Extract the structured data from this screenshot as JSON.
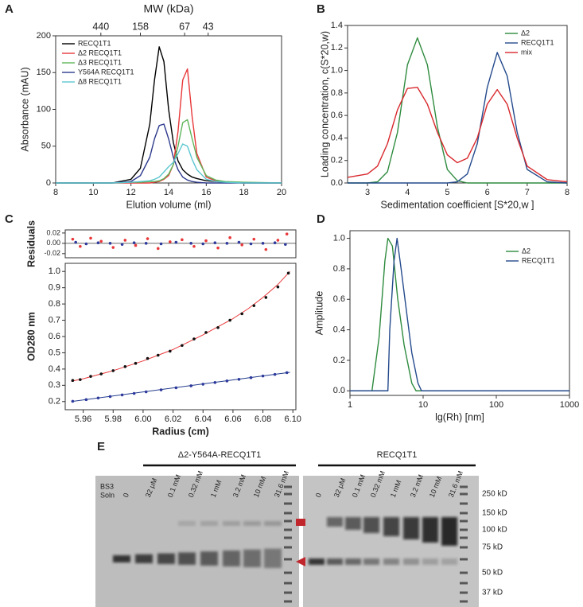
{
  "chart_data": [
    {
      "type": "line",
      "panel": "A",
      "x2label": "MW (kDa)",
      "xlabel": "Elution volume (ml)",
      "ylabel": "Absorbance (mAU)",
      "x": [
        8,
        10,
        11,
        12,
        12.5,
        13,
        13.25,
        13.5,
        13.75,
        14,
        14.25,
        14.5,
        14.75,
        15,
        15.25,
        15.5,
        16,
        16.5,
        17,
        18,
        20
      ],
      "series": [
        {
          "name": "RECQ1T1",
          "color": "#000000",
          "values": [
            0,
            0,
            0,
            5,
            20,
            80,
            140,
            185,
            165,
            100,
            55,
            30,
            18,
            12,
            8,
            6,
            3,
            2,
            1,
            0,
            0
          ]
        },
        {
          "name": "Δ2 RECQ1T1",
          "color": "#e8383a",
          "values": [
            0,
            0,
            0,
            0,
            0,
            0,
            1,
            2,
            5,
            10,
            25,
            70,
            140,
            155,
            90,
            40,
            8,
            3,
            1,
            0,
            0
          ]
        },
        {
          "name": "Δ3 RECQ1T1",
          "color": "#5fb55a",
          "values": [
            0,
            0,
            0,
            1,
            1,
            2,
            2,
            3,
            6,
            12,
            25,
            50,
            82,
            86,
            60,
            35,
            10,
            4,
            2,
            1,
            0
          ]
        },
        {
          "name": "Y564A RECQ1T1",
          "color": "#2d3a8c",
          "values": [
            0,
            0,
            0,
            2,
            10,
            35,
            60,
            78,
            80,
            60,
            35,
            18,
            8,
            4,
            2,
            1,
            0,
            0,
            0,
            0,
            0
          ]
        },
        {
          "name": "Δ8 RECQ1T1",
          "color": "#5cc6d0",
          "values": [
            0,
            0,
            0,
            1,
            2,
            3,
            5,
            8,
            15,
            22,
            28,
            40,
            53,
            50,
            32,
            18,
            5,
            2,
            1,
            0,
            0
          ]
        }
      ],
      "xlim": [
        8,
        20
      ],
      "ylim": [
        0,
        200
      ],
      "xticks": [
        8,
        10,
        12,
        14,
        16,
        18,
        20
      ],
      "yticks": [
        0,
        50,
        100,
        150,
        200
      ],
      "x2ticks": [
        {
          "value": 10.4,
          "label": "440"
        },
        {
          "value": 12.5,
          "label": "158"
        },
        {
          "value": 14.85,
          "label": "67"
        },
        {
          "value": 16.1,
          "label": "43"
        }
      ],
      "legend": "upper left"
    },
    {
      "type": "line",
      "panel": "B",
      "xlabel": "Sedimentation coefficient [S*20,w ]",
      "ylabel": "Loading concentration, c(S*20,w)",
      "x": [
        2.5,
        3,
        3.25,
        3.5,
        3.75,
        4,
        4.25,
        4.5,
        4.75,
        5,
        5.25,
        5.5,
        5.75,
        6,
        6.25,
        6.5,
        6.75,
        7,
        7.5,
        8
      ],
      "series": [
        {
          "name": "Δ2",
          "color": "#2e8b3e",
          "values": [
            0,
            0,
            0.01,
            0.1,
            0.45,
            1.05,
            1.29,
            1.05,
            0.5,
            0.12,
            0.02,
            0,
            0,
            0,
            0,
            0,
            0,
            0,
            0,
            0
          ]
        },
        {
          "name": "RECQ1T1",
          "color": "#244a8c",
          "values": [
            0,
            0,
            0,
            0,
            0,
            0,
            0,
            0,
            0,
            0,
            0.01,
            0.08,
            0.35,
            0.85,
            1.16,
            0.95,
            0.45,
            0.12,
            0.01,
            0
          ]
        },
        {
          "name": "mix",
          "color": "#d8282c",
          "values": [
            0.05,
            0.08,
            0.15,
            0.35,
            0.65,
            0.84,
            0.85,
            0.7,
            0.45,
            0.25,
            0.18,
            0.22,
            0.4,
            0.7,
            0.83,
            0.7,
            0.4,
            0.15,
            0.03,
            0.01
          ]
        }
      ],
      "xlim": [
        2.5,
        8
      ],
      "ylim": [
        0,
        1.4
      ],
      "xticks": [
        3,
        4,
        5,
        6,
        7,
        8
      ],
      "yticks": [
        {
          "value": 0,
          "label": "0.0"
        },
        0.2,
        0.4,
        0.6,
        0.8,
        {
          "value": 1,
          "label": "1.0"
        },
        1.2,
        1.4
      ],
      "legend": "upper right"
    },
    {
      "type": "scatter",
      "panel": "C",
      "ylabel": "Residuals",
      "series": [
        {
          "color": "#e8383a",
          "x": [
            5.953,
            5.958,
            5.965,
            5.972,
            5.98,
            5.988,
            5.995,
            6.003,
            6.01,
            6.018,
            6.026,
            6.034,
            6.042,
            6.05,
            6.058,
            6.066,
            6.074,
            6.082,
            6.09,
            6.096
          ],
          "values": [
            0.008,
            -0.006,
            0.01,
            0.004,
            -0.008,
            0.006,
            -0.004,
            0.009,
            -0.01,
            0.003,
            0.007,
            -0.006,
            0.005,
            -0.009,
            0.011,
            -0.003,
            0.008,
            -0.012,
            0.006,
            0.018
          ]
        },
        {
          "color": "#2d3a9c",
          "x": [
            5.955,
            5.962,
            5.97,
            5.978,
            5.986,
            5.994,
            6.002,
            6.012,
            6.022,
            6.032,
            6.04,
            6.048,
            6.056,
            6.064,
            6.072,
            6.08,
            6.088,
            6.095
          ],
          "values": [
            0.002,
            -0.001,
            0.001,
            0,
            -0.002,
            0.001,
            0,
            -0.001,
            0.002,
            0,
            -0.001,
            0.001,
            0,
            0.002,
            -0.001,
            0,
            0.001,
            -0.002
          ]
        }
      ],
      "xlim": [
        5.948,
        6.102
      ],
      "ylim": [
        -0.028,
        0.026
      ],
      "yticks": [
        -0.02,
        {
          "value": 0,
          "label": "0.00"
        },
        0.02
      ]
    },
    {
      "type": "scatter",
      "panel": "C",
      "ylabel": "OD280 nm",
      "xlabel": "Radius (cm)",
      "series": [
        {
          "type": "line",
          "color": "#e8383a",
          "x": [
            5.952,
            5.96,
            5.97,
            5.98,
            5.99,
            6,
            6.01,
            6.02,
            6.03,
            6.04,
            6.05,
            6.06,
            6.07,
            6.08,
            6.09,
            6.098
          ],
          "values": [
            0.325,
            0.34,
            0.365,
            0.39,
            0.42,
            0.45,
            0.485,
            0.52,
            0.565,
            0.61,
            0.66,
            0.71,
            0.77,
            0.84,
            0.92,
            1.0
          ]
        },
        {
          "color": "#111111",
          "x": [
            5.953,
            5.958,
            5.965,
            5.972,
            5.98,
            5.988,
            5.995,
            6.003,
            6.01,
            6.018,
            6.026,
            6.034,
            6.042,
            6.05,
            6.058,
            6.066,
            6.074,
            6.082,
            6.09,
            6.097
          ],
          "values": [
            0.33,
            0.335,
            0.355,
            0.37,
            0.39,
            0.415,
            0.435,
            0.465,
            0.485,
            0.51,
            0.545,
            0.585,
            0.625,
            0.655,
            0.7,
            0.74,
            0.79,
            0.84,
            0.905,
            0.99
          ]
        },
        {
          "type": "line",
          "color": "#223a8c",
          "x": [
            5.952,
            6.098
          ],
          "values": [
            0.2,
            0.38
          ]
        },
        {
          "color": "#2d3a9c",
          "x": [
            5.953,
            5.962,
            5.97,
            5.978,
            5.986,
            5.994,
            6.002,
            6.012,
            6.022,
            6.032,
            6.04,
            6.048,
            6.056,
            6.064,
            6.072,
            6.08,
            6.088,
            6.096
          ],
          "values": [
            0.202,
            0.212,
            0.222,
            0.231,
            0.241,
            0.25,
            0.26,
            0.272,
            0.285,
            0.297,
            0.307,
            0.317,
            0.327,
            0.337,
            0.347,
            0.357,
            0.367,
            0.378
          ]
        }
      ],
      "xlim": [
        5.948,
        6.102
      ],
      "ylim": [
        0.15,
        1.05
      ],
      "xticks": [
        5.96,
        5.98,
        {
          "value": 6,
          "label": "6.00"
        },
        6.02,
        6.04,
        6.06,
        6.08,
        {
          "value": 6.1,
          "label": "6.10"
        }
      ],
      "yticks": [
        0.2,
        0.3,
        0.4,
        0.5,
        0.6,
        0.7,
        0.8,
        0.9,
        {
          "value": 1,
          "label": "1.0"
        }
      ]
    },
    {
      "type": "line",
      "panel": "D",
      "xlabel": "lg(Rh) [nm]",
      "ylabel": "Amplitude",
      "xscale": "log",
      "series": [
        {
          "name": "Δ2",
          "color": "#2e8b3e",
          "x": [
            1,
            2,
            2.5,
            3,
            3.3,
            3.8,
            4.5,
            5.5,
            7,
            8,
            1000
          ],
          "values": [
            0,
            0,
            0.35,
            0.85,
            1.0,
            0.95,
            0.6,
            0.3,
            0.05,
            0,
            0
          ]
        },
        {
          "name": "RECQ1T1",
          "color": "#244a8c",
          "x": [
            1,
            3.3,
            3.5,
            4,
            4.4,
            5,
            6,
            7,
            8.5,
            9.5,
            1000
          ],
          "values": [
            0,
            0,
            0.4,
            0.85,
            1.0,
            0.8,
            0.5,
            0.25,
            0.05,
            0,
            0
          ]
        }
      ],
      "xlim": [
        1,
        1000
      ],
      "ylim": [
        -0.03,
        1.05
      ],
      "xticks": [
        1,
        10,
        100,
        1000
      ],
      "yticks": [
        {
          "value": 0,
          "label": "0.0"
        },
        0.2,
        0.4,
        0.6,
        0.8,
        {
          "value": 1,
          "label": "1.0"
        }
      ],
      "legend": "upper right"
    }
  ],
  "gel": {
    "panel": "E",
    "row_labels": [
      "BS3",
      "Soln"
    ],
    "groups": [
      {
        "title": "Δ2-Y564A-RECQ1T1",
        "lanes": [
          "0",
          "32 μM",
          "0.1 mM",
          "0.32 mM",
          "1 mM",
          "3.2 mM",
          "10 mM",
          "31.6 mM"
        ]
      },
      {
        "title": "RECQ1T1",
        "lanes": [
          "0",
          "32 μM",
          "0.1 mM",
          "0.32 mM",
          "1 mM",
          "3.2 mM",
          "10 mM",
          "31.6 mM"
        ]
      }
    ],
    "markers": [
      "250 kD",
      "150 kD",
      "100 kD",
      "75 kD",
      "50 kD",
      "37 kD"
    ]
  }
}
